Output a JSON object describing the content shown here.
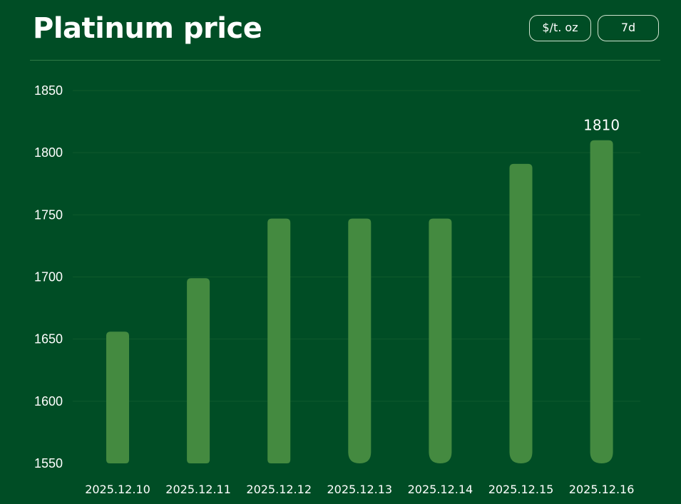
{
  "header": {
    "title": "Platinum price",
    "unit_button": "$/t. oz",
    "range_button": "7d"
  },
  "colors": {
    "background": "#004d25",
    "bar": "#448a40",
    "grid": "#0f5a2c",
    "divider": "#2f7a45"
  },
  "chart_data": {
    "type": "bar",
    "categories": [
      "2025.12.10",
      "2025.12.11",
      "2025.12.12",
      "2025.12.13",
      "2025.12.14",
      "2025.12.15",
      "2025.12.16"
    ],
    "values": [
      1656,
      1699,
      1747,
      1747,
      1747,
      1791,
      1810
    ],
    "ylim": [
      1550,
      1850
    ],
    "yticks": [
      1550,
      1600,
      1650,
      1700,
      1750,
      1800,
      1850
    ],
    "data_labels": [
      {
        "index": 6,
        "text": "1810"
      }
    ],
    "grid": true,
    "legend": "none"
  }
}
